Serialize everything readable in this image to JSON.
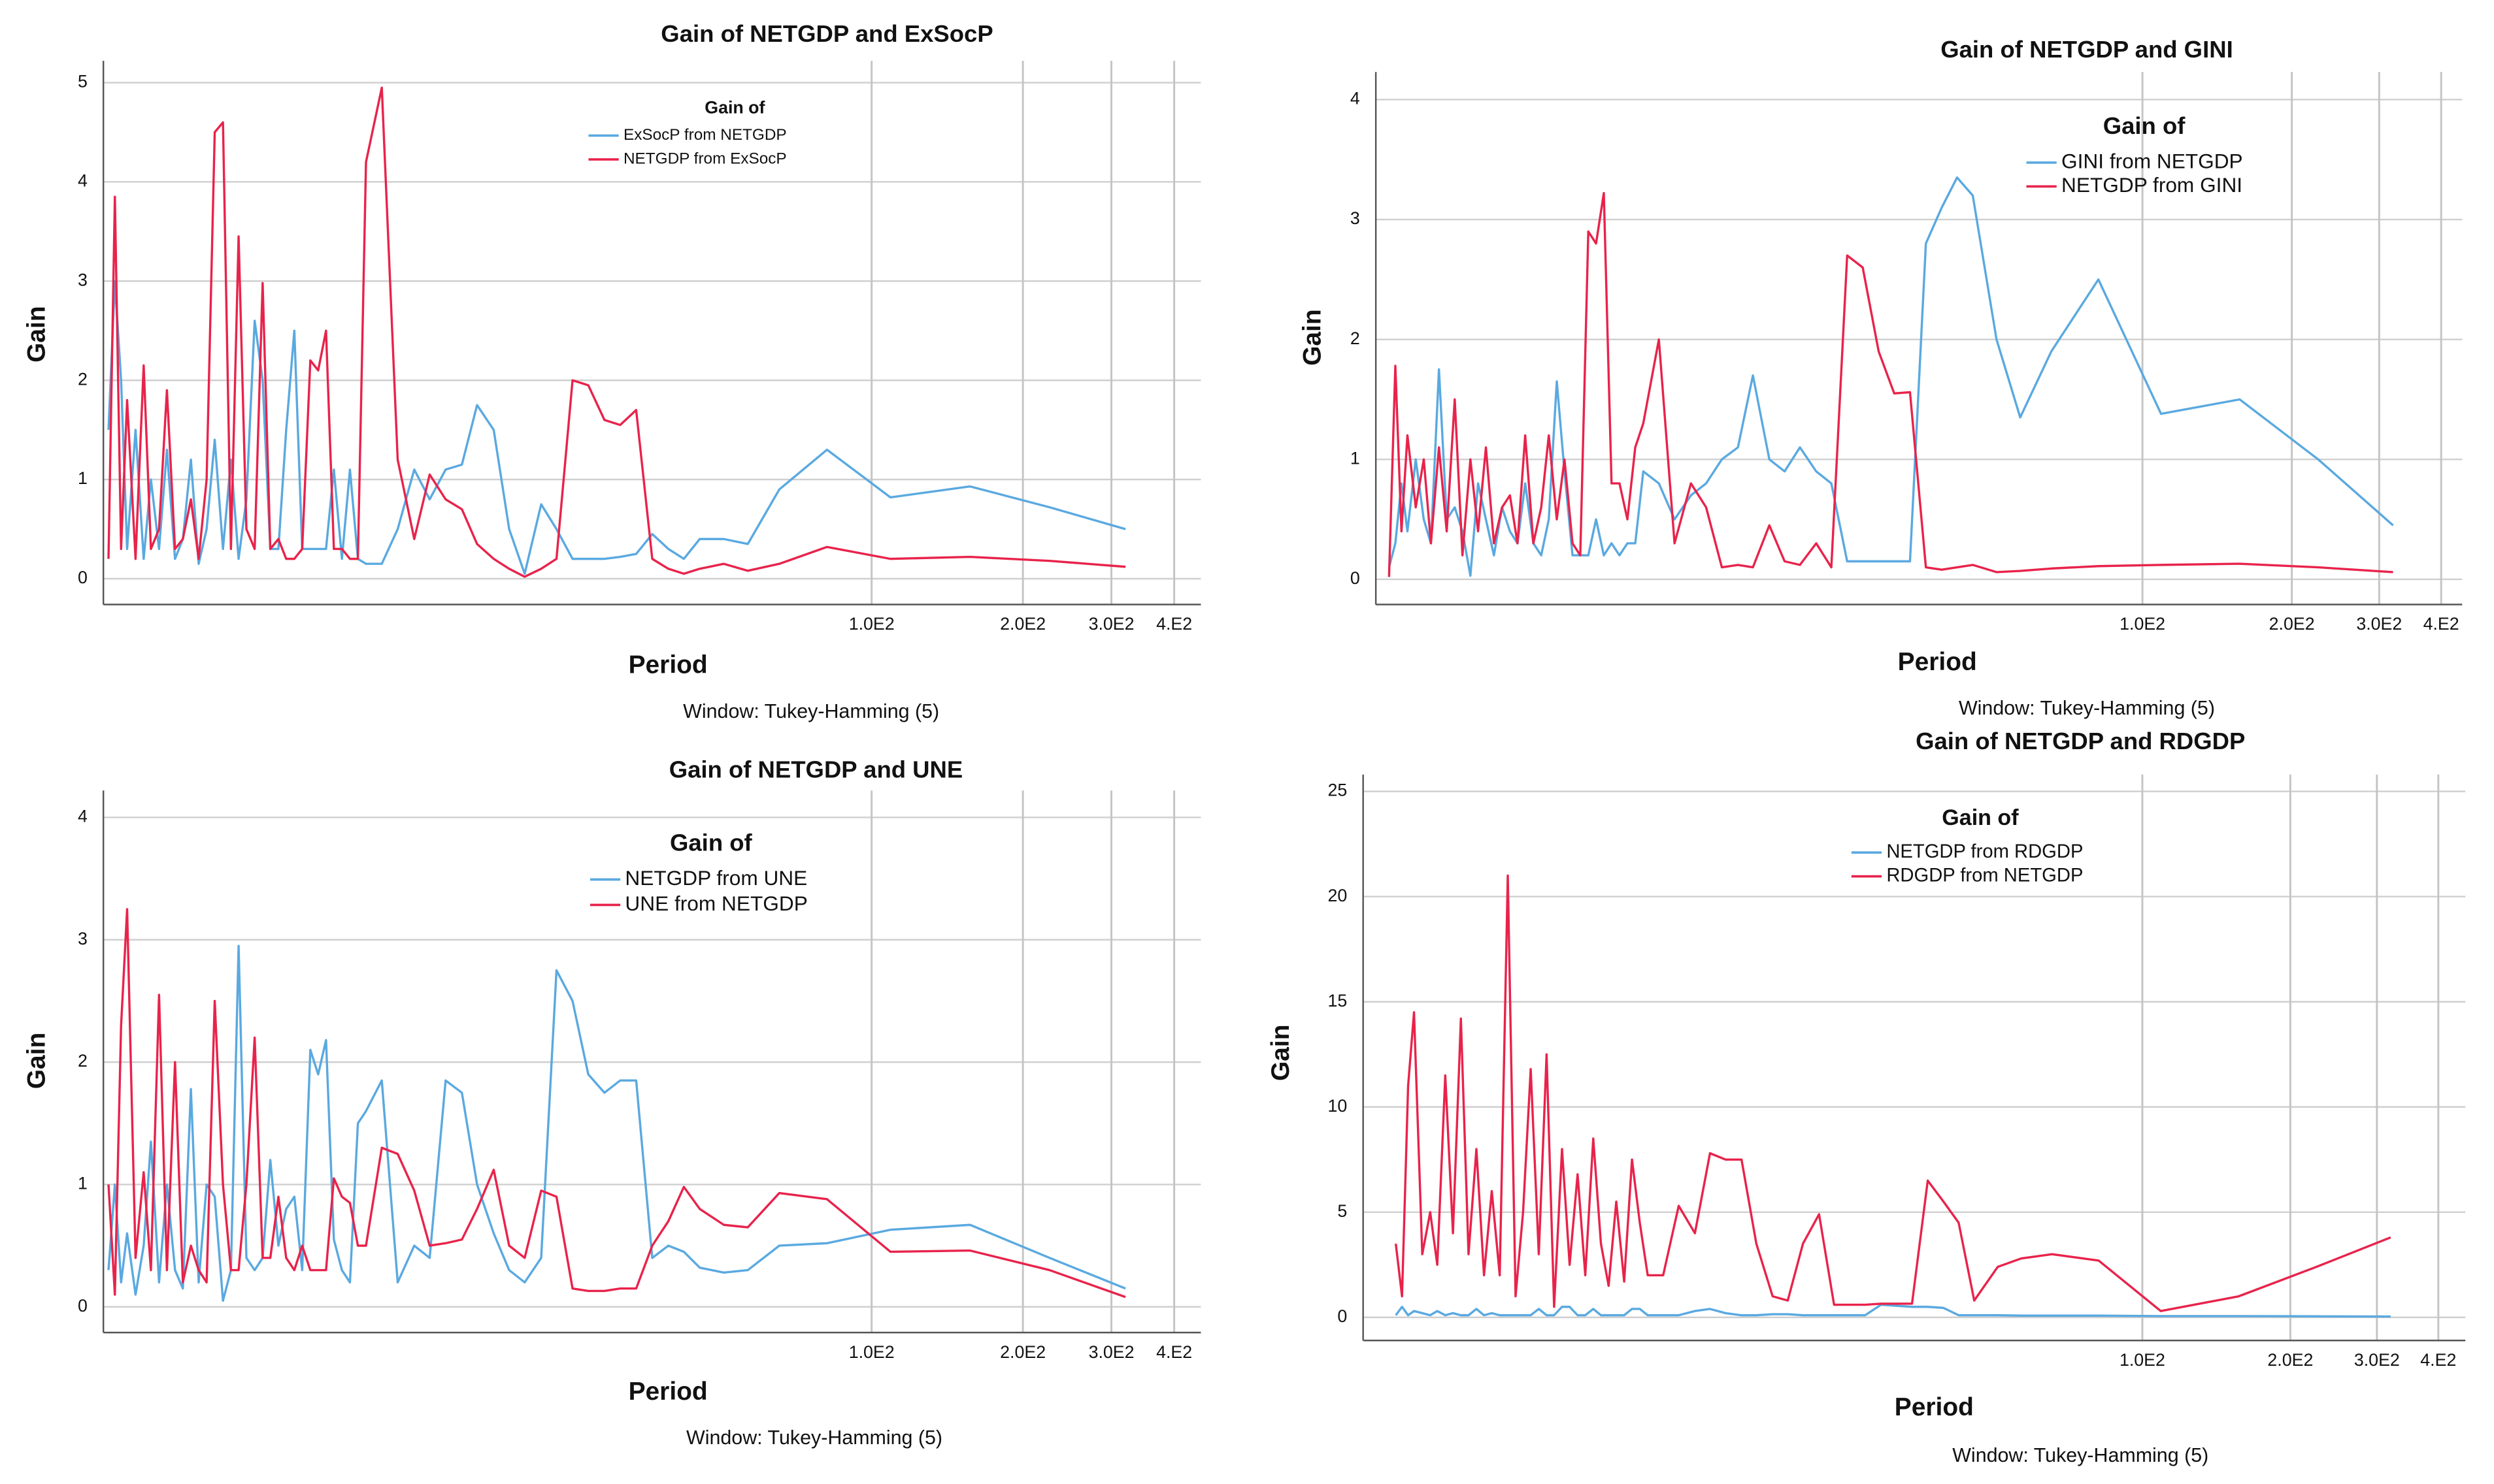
{
  "chart_data": [
    {
      "type": "line",
      "title": "Gain of NETGDP and ExSocP",
      "x_label": "Period",
      "y_label": "Gain",
      "note": "Window: Tukey-Hamming (5)",
      "legend_title": "Gain of",
      "log_x": true,
      "grid": true,
      "xlim": [
        2.96,
        452
      ],
      "ylim": [
        -0.26,
        5.22
      ],
      "xticks": [
        {
          "value": 100,
          "label": "1.0E2"
        },
        {
          "value": 200,
          "label": "2.0E2"
        },
        {
          "value": 300,
          "label": "3.0E2"
        },
        {
          "value": 400,
          "label": "4.E2"
        }
      ],
      "yticks": [
        0,
        1,
        2,
        3,
        4,
        5
      ],
      "x": [
        3.03,
        3.12,
        3.21,
        3.3,
        3.43,
        3.56,
        3.68,
        3.82,
        3.96,
        4.11,
        4.26,
        4.42,
        4.58,
        4.75,
        4.93,
        5.12,
        5.31,
        5.5,
        5.7,
        5.92,
        6.14,
        6.36,
        6.6,
        6.84,
        7.1,
        7.36,
        7.64,
        7.92,
        8.21,
        8.51,
        8.83,
        9.16,
        9.5,
        9.86,
        10.6,
        11.4,
        12.3,
        13.2,
        14.2,
        15.3,
        16.4,
        17.7,
        19,
        20.4,
        22,
        23.6,
        25.4,
        27.3,
        29.4,
        31.6,
        34,
        36.6,
        39.4,
        42.3,
        45.5,
        50.8,
        56.7,
        65.5,
        81.5,
        109,
        157,
        226,
        320
      ],
      "series": [
        {
          "name": "ExSocP from NETGDP",
          "color": "#5aa9e0",
          "values": [
            1.5,
            3.0,
            2.0,
            0.3,
            1.5,
            0.2,
            1.0,
            0.3,
            1.3,
            0.2,
            0.4,
            1.2,
            0.15,
            0.5,
            1.4,
            0.3,
            1.2,
            0.2,
            0.8,
            2.6,
            2.0,
            0.3,
            0.3,
            1.5,
            2.5,
            0.3,
            0.3,
            0.3,
            0.3,
            1.1,
            0.2,
            1.1,
            0.2,
            0.15,
            0.15,
            0.5,
            1.1,
            0.8,
            1.1,
            1.15,
            1.75,
            1.5,
            0.5,
            0.05,
            0.75,
            0.5,
            0.2,
            0.2,
            0.2,
            0.22,
            0.25,
            0.45,
            0.3,
            0.2,
            0.4,
            0.4,
            0.35,
            0.9,
            1.3,
            0.82,
            0.93,
            0.72,
            0.5
          ]
        },
        {
          "name": "NETGDP from ExSocP",
          "color": "#e8234b",
          "values": [
            0.2,
            3.85,
            0.3,
            1.8,
            0.2,
            2.15,
            0.3,
            0.5,
            1.9,
            0.3,
            0.4,
            0.8,
            0.2,
            1.0,
            4.5,
            4.6,
            0.3,
            3.45,
            0.5,
            0.3,
            2.98,
            0.3,
            0.4,
            0.2,
            0.2,
            0.3,
            2.2,
            2.1,
            2.5,
            0.3,
            0.3,
            0.2,
            0.2,
            4.2,
            4.95,
            1.2,
            0.4,
            1.05,
            0.8,
            0.7,
            0.35,
            0.2,
            0.1,
            0.02,
            0.1,
            0.2,
            2.0,
            1.95,
            1.6,
            1.55,
            1.7,
            0.2,
            0.1,
            0.05,
            0.1,
            0.15,
            0.08,
            0.15,
            0.32,
            0.2,
            0.22,
            0.18,
            0.12
          ]
        }
      ]
    },
    {
      "type": "line",
      "title": "Gain of NETGDP and GINI",
      "x_label": "Period",
      "y_label": "Gain",
      "note": "Window: Tukey-Hamming (5)",
      "legend_title": "Gain of",
      "log_x": true,
      "grid": true,
      "xlim": [
        2.85,
        441
      ],
      "ylim": [
        -0.21,
        4.23
      ],
      "xticks": [
        {
          "value": 100,
          "label": "1.0E2"
        },
        {
          "value": 200,
          "label": "2.0E2"
        },
        {
          "value": 300,
          "label": "3.0E2"
        },
        {
          "value": 400,
          "label": "4.E2"
        }
      ],
      "yticks": [
        0,
        1,
        2,
        3,
        4
      ],
      "x": [
        3.03,
        3.12,
        3.21,
        3.3,
        3.43,
        3.56,
        3.68,
        3.82,
        3.96,
        4.11,
        4.26,
        4.42,
        4.58,
        4.75,
        4.93,
        5.12,
        5.31,
        5.5,
        5.7,
        5.92,
        6.14,
        6.36,
        6.6,
        6.84,
        7.1,
        7.36,
        7.64,
        7.92,
        8.21,
        8.51,
        8.83,
        9.16,
        9.5,
        9.86,
        10.6,
        11.4,
        12.3,
        13.2,
        14.2,
        15.3,
        16.4,
        17.7,
        19,
        20.4,
        22,
        23.6,
        25.4,
        27.3,
        29.4,
        31.6,
        34,
        36.6,
        39.4,
        42.3,
        45.5,
        50.8,
        56.7,
        65.5,
        81.5,
        109,
        157,
        226,
        320
      ],
      "series": [
        {
          "name": "GINI from NETGDP",
          "color": "#5aa9e0",
          "values": [
            0.1,
            0.3,
            0.8,
            0.4,
            1.0,
            0.5,
            0.3,
            1.75,
            0.5,
            0.6,
            0.4,
            0.03,
            0.8,
            0.5,
            0.2,
            0.6,
            0.4,
            0.3,
            0.8,
            0.3,
            0.2,
            0.5,
            1.65,
            0.9,
            0.2,
            0.2,
            0.2,
            0.5,
            0.2,
            0.3,
            0.2,
            0.3,
            0.3,
            0.9,
            0.8,
            0.5,
            0.7,
            0.8,
            1.0,
            1.1,
            1.7,
            1.0,
            0.9,
            1.1,
            0.9,
            0.8,
            0.15,
            0.15,
            0.15,
            0.15,
            0.15,
            2.8,
            3.1,
            3.35,
            3.2,
            2.0,
            1.35,
            1.9,
            2.5,
            1.38,
            1.5,
            1.0,
            0.45
          ]
        },
        {
          "name": "NETGDP from GINI",
          "color": "#e8234b",
          "values": [
            0.02,
            1.78,
            0.4,
            1.2,
            0.6,
            1.0,
            0.3,
            1.1,
            0.4,
            1.5,
            0.2,
            1.0,
            0.4,
            1.1,
            0.3,
            0.6,
            0.7,
            0.3,
            1.2,
            0.3,
            0.6,
            1.2,
            0.5,
            1.0,
            0.3,
            0.2,
            2.9,
            2.8,
            3.22,
            0.8,
            0.8,
            0.5,
            1.1,
            1.3,
            2.0,
            0.3,
            0.8,
            0.6,
            0.1,
            0.12,
            0.1,
            0.45,
            0.15,
            0.12,
            0.3,
            0.1,
            2.7,
            2.6,
            1.9,
            1.55,
            1.56,
            0.1,
            0.08,
            0.1,
            0.12,
            0.06,
            0.07,
            0.09,
            0.11,
            0.12,
            0.13,
            0.1,
            0.06
          ]
        }
      ]
    },
    {
      "type": "line",
      "title": "Gain of NETGDP and UNE",
      "x_label": "Period",
      "y_label": "Gain",
      "note": "Window: Tukey-Hamming (5)",
      "legend_title": "Gain of",
      "log_x": true,
      "grid": true,
      "xlim": [
        2.96,
        452
      ],
      "ylim": [
        -0.21,
        4.22
      ],
      "xticks": [
        {
          "value": 100,
          "label": "1.0E2"
        },
        {
          "value": 200,
          "label": "2.0E2"
        },
        {
          "value": 300,
          "label": "3.0E2"
        },
        {
          "value": 400,
          "label": "4.E2"
        }
      ],
      "yticks": [
        0,
        1,
        2,
        3,
        4
      ],
      "x": [
        3.03,
        3.12,
        3.21,
        3.3,
        3.43,
        3.56,
        3.68,
        3.82,
        3.96,
        4.11,
        4.26,
        4.42,
        4.58,
        4.75,
        4.93,
        5.12,
        5.31,
        5.5,
        5.7,
        5.92,
        6.14,
        6.36,
        6.6,
        6.84,
        7.1,
        7.36,
        7.64,
        7.92,
        8.21,
        8.51,
        8.83,
        9.16,
        9.5,
        9.86,
        10.6,
        11.4,
        12.3,
        13.2,
        14.2,
        15.3,
        16.4,
        17.7,
        19,
        20.4,
        22,
        23.6,
        25.4,
        27.3,
        29.4,
        31.6,
        34,
        36.6,
        39.4,
        42.3,
        45.5,
        50.8,
        56.7,
        65.5,
        81.5,
        109,
        157,
        226,
        320
      ],
      "series": [
        {
          "name": "NETGDP from UNE",
          "color": "#5aa9e0",
          "values": [
            0.3,
            1.0,
            0.2,
            0.6,
            0.1,
            0.5,
            1.35,
            0.2,
            1.0,
            0.3,
            0.15,
            1.78,
            0.2,
            1.0,
            0.9,
            0.05,
            0.3,
            2.95,
            0.4,
            0.3,
            0.4,
            1.2,
            0.5,
            0.8,
            0.9,
            0.3,
            2.1,
            1.9,
            2.18,
            0.55,
            0.3,
            0.2,
            1.5,
            1.6,
            1.85,
            0.2,
            0.5,
            0.4,
            1.85,
            1.75,
            1.0,
            0.6,
            0.3,
            0.2,
            0.4,
            2.75,
            2.5,
            1.9,
            1.75,
            1.85,
            1.85,
            0.4,
            0.5,
            0.45,
            0.32,
            0.28,
            0.3,
            0.5,
            0.52,
            0.63,
            0.67,
            0.4,
            0.15
          ]
        },
        {
          "name": "UNE from NETGDP",
          "color": "#e8234b",
          "values": [
            1.0,
            0.1,
            2.3,
            3.25,
            0.4,
            1.1,
            0.3,
            2.55,
            0.3,
            2.0,
            0.2,
            0.5,
            0.3,
            0.2,
            2.5,
            1.0,
            0.3,
            0.3,
            1.0,
            2.2,
            0.4,
            0.4,
            0.9,
            0.4,
            0.3,
            0.5,
            0.3,
            0.3,
            0.3,
            1.05,
            0.9,
            0.85,
            0.5,
            0.5,
            1.3,
            1.25,
            0.95,
            0.5,
            0.52,
            0.55,
            0.8,
            1.12,
            0.5,
            0.4,
            0.95,
            0.9,
            0.15,
            0.13,
            0.13,
            0.15,
            0.15,
            0.5,
            0.7,
            0.98,
            0.8,
            0.67,
            0.65,
            0.93,
            0.88,
            0.45,
            0.46,
            0.3,
            0.08
          ]
        }
      ]
    },
    {
      "type": "line",
      "title": "Gain of NETGDP and RDGDP",
      "x_label": "Period",
      "y_label": "Gain",
      "note": "Window: Tukey-Hamming (5)",
      "legend_title": "Gain of",
      "log_x": true,
      "grid": true,
      "xlim": [
        2.6,
        454
      ],
      "ylim": [
        -1.1,
        25.8
      ],
      "xticks": [
        {
          "value": 100,
          "label": "1.0E2"
        },
        {
          "value": 200,
          "label": "2.0E2"
        },
        {
          "value": 300,
          "label": "3.0E2"
        },
        {
          "value": 400,
          "label": "4.E2"
        }
      ],
      "yticks": [
        0,
        5,
        10,
        15,
        20,
        25
      ],
      "x": [
        3.03,
        3.12,
        3.21,
        3.3,
        3.43,
        3.56,
        3.68,
        3.82,
        3.96,
        4.11,
        4.26,
        4.42,
        4.58,
        4.75,
        4.93,
        5.12,
        5.31,
        5.5,
        5.7,
        5.92,
        6.14,
        6.36,
        6.6,
        6.84,
        7.1,
        7.36,
        7.64,
        7.92,
        8.21,
        8.51,
        8.83,
        9.16,
        9.5,
        9.86,
        10.6,
        11.4,
        12.3,
        13.2,
        14.2,
        15.3,
        16.4,
        17.7,
        19,
        20.4,
        22,
        23.6,
        25.4,
        27.3,
        29.4,
        31.6,
        34,
        36.6,
        39.4,
        42.3,
        45.5,
        50.8,
        56.7,
        65.5,
        81.5,
        109,
        157,
        226,
        320
      ],
      "series": [
        {
          "name": "NETGDP from RDGDP",
          "color": "#5aa9e0",
          "values": [
            0.1,
            0.5,
            0.1,
            0.3,
            0.2,
            0.1,
            0.3,
            0.1,
            0.2,
            0.1,
            0.1,
            0.4,
            0.1,
            0.2,
            0.1,
            0.1,
            0.1,
            0.1,
            0.1,
            0.4,
            0.1,
            0.1,
            0.5,
            0.5,
            0.1,
            0.1,
            0.4,
            0.1,
            0.1,
            0.1,
            0.1,
            0.4,
            0.4,
            0.1,
            0.1,
            0.1,
            0.3,
            0.4,
            0.2,
            0.1,
            0.1,
            0.15,
            0.15,
            0.1,
            0.1,
            0.1,
            0.1,
            0.1,
            0.6,
            0.55,
            0.5,
            0.5,
            0.45,
            0.1,
            0.1,
            0.1,
            0.08,
            0.08,
            0.08,
            0.06,
            0.06,
            0.05,
            0.04
          ]
        },
        {
          "name": "RDGDP from NETGDP",
          "color": "#e8234b",
          "values": [
            3.5,
            1.0,
            11,
            14.5,
            3.0,
            5.0,
            2.5,
            11.5,
            4.0,
            14.2,
            3.0,
            8.0,
            2.0,
            6.0,
            2.0,
            21,
            1.0,
            5.0,
            11.8,
            3.0,
            12.5,
            0.5,
            8.0,
            2.5,
            6.8,
            2.0,
            8.5,
            3.5,
            1.5,
            5.5,
            1.7,
            7.5,
            4.5,
            2.0,
            2.0,
            5.3,
            4.0,
            7.8,
            7.5,
            7.5,
            3.5,
            1.0,
            0.8,
            3.5,
            4.9,
            0.6,
            0.6,
            0.6,
            0.65,
            0.65,
            0.65,
            6.5,
            5.5,
            4.5,
            0.8,
            2.4,
            2.8,
            3.0,
            2.7,
            0.3,
            1.0,
            2.4,
            3.8
          ]
        }
      ]
    }
  ]
}
